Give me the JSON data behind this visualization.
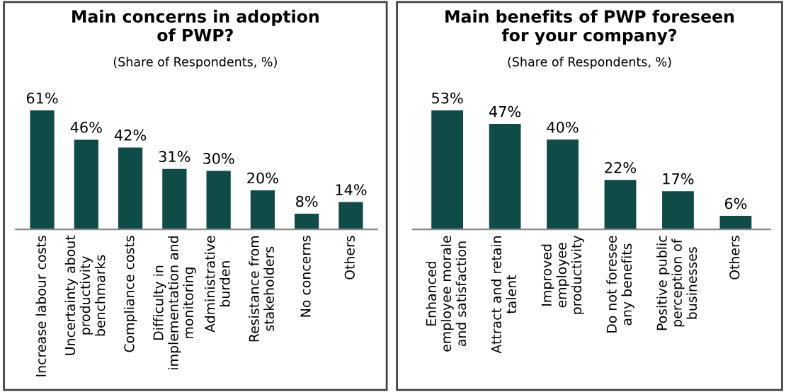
{
  "chart_data": [
    {
      "type": "bar",
      "title": "Main concerns in adoption\nof PWP?",
      "subtitle": "(Share of Respondents, %)",
      "categories": [
        "Increase labour costs",
        "Uncertainty about\nproductivity\nbenchmarks",
        "Compliance costs",
        "Difficulty in\nimplementation and\nmonitoring",
        "Administrative\nburden",
        "Resistance from\nstakeholders",
        "No concerns",
        "Others"
      ],
      "values": [
        61,
        46,
        42,
        31,
        30,
        20,
        8,
        14
      ],
      "value_labels": [
        "61%",
        "46%",
        "42%",
        "31%",
        "30%",
        "20%",
        "8%",
        "14%"
      ],
      "color": "#0f4c47",
      "tick_labels": "x"
    },
    {
      "type": "bar",
      "title": "Main benefits of PWP foreseen\nfor your company?",
      "subtitle": "(Share of Respondents, %)",
      "categories": [
        "Enhanced\nemployee morale\nand satisfaction",
        "Attract and retain\ntalent",
        "Improved\nemployee\nproductivity",
        "Do not foresee\nany benefits",
        "Positive public\nperception of\nbusinesses",
        "Others"
      ],
      "values": [
        53,
        47,
        40,
        22,
        17,
        6
      ],
      "value_labels": [
        "53%",
        "47%",
        "40%",
        "22%",
        "17%",
        "6%"
      ],
      "color": "#0f4c47",
      "tick_labels": "x"
    }
  ]
}
